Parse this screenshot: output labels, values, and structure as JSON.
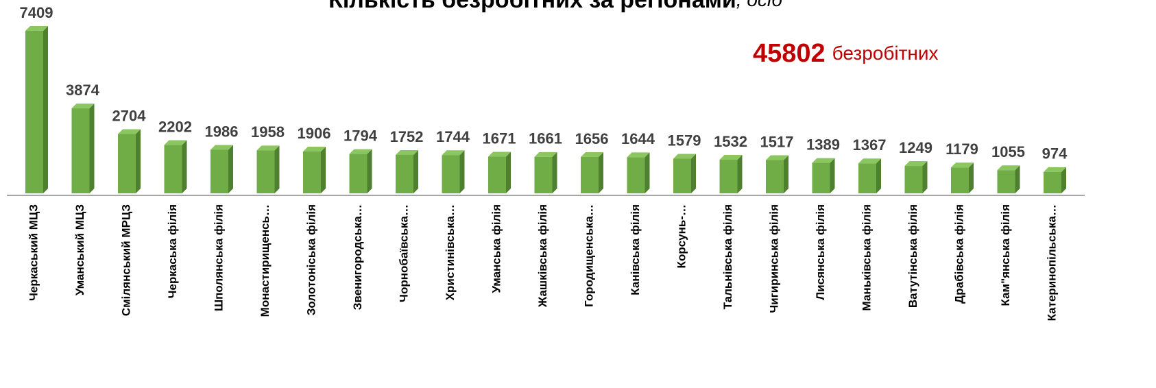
{
  "chart_data": {
    "type": "bar",
    "title": "Кількість безробітних за регіонами",
    "title_unit": ", осіб",
    "annotation_value": "45802",
    "annotation_text": "безробітних",
    "color": "#70ad47",
    "categories": [
      "Черкаський МЦЗ",
      "Уманський МЦЗ",
      "Смілянський МРЦЗ",
      "Черкаська філія",
      "Шполянська філія",
      "Монастирищенсь…",
      "Золотоніська філія",
      "Звенигородська…",
      "Чорнобаївська…",
      "Христинівська…",
      "Уманська філія",
      "Жашківська філія",
      "Городищенська…",
      "Канівська філія",
      "Корсунь-…",
      "Тальнівська філія",
      "Чигиринська філія",
      "Лисянська філія",
      "Маньківська філія",
      "Ватутінська філія",
      "Драбівська філія",
      "Кам\"янська філія",
      "Катеринопільська…"
    ],
    "values": [
      7409,
      3874,
      2704,
      2202,
      1986,
      1958,
      1906,
      1794,
      1752,
      1744,
      1671,
      1661,
      1656,
      1644,
      1579,
      1532,
      1517,
      1389,
      1367,
      1249,
      1179,
      1055,
      974
    ]
  }
}
